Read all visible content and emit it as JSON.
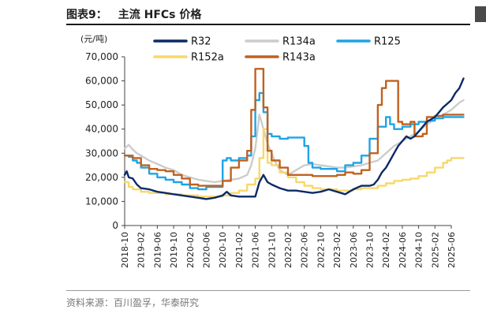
{
  "figure": {
    "label": "图表9：",
    "title": "主流 HFCs 价格",
    "source": "资料来源：百川盈孚，华泰研究"
  },
  "chart_data": {
    "type": "line",
    "title": "",
    "xlabel": "",
    "ylabel": "(元/吨)",
    "ylim": [
      0,
      70000
    ],
    "yticks": [
      0,
      10000,
      20000,
      30000,
      40000,
      50000,
      60000,
      70000
    ],
    "ytick_labels": [
      "0",
      "10,000",
      "20,000",
      "30,000",
      "40,000",
      "50,000",
      "60,000",
      "70,000"
    ],
    "xticks": [
      "2018-10",
      "2019-02",
      "2019-06",
      "2019-10",
      "2020-02",
      "2020-06",
      "2020-10",
      "2021-02",
      "2021-06",
      "2021-10",
      "2022-02",
      "2022-06",
      "2022-10",
      "2023-02",
      "2023-06",
      "2023-10",
      "2024-02",
      "2024-06",
      "2024-10",
      "2025-02",
      "2025-06"
    ],
    "x_unit": "month",
    "x_start": "2018-10",
    "legend_position": "top",
    "grid": false,
    "series": [
      {
        "name": "R32",
        "color": "#0c2a66",
        "step": false,
        "points": [
          [
            0,
            21000
          ],
          [
            0.5,
            22500
          ],
          [
            1,
            20000
          ],
          [
            2,
            19500
          ],
          [
            3,
            17000
          ],
          [
            4,
            15500
          ],
          [
            6,
            15000
          ],
          [
            8,
            14000
          ],
          [
            10,
            13500
          ],
          [
            12,
            13000
          ],
          [
            14,
            12500
          ],
          [
            16,
            12000
          ],
          [
            18,
            11500
          ],
          [
            20,
            11000
          ],
          [
            22,
            11500
          ],
          [
            24,
            12500
          ],
          [
            25,
            14000
          ],
          [
            26,
            12500
          ],
          [
            28,
            12000
          ],
          [
            30,
            12000
          ],
          [
            32,
            12000
          ],
          [
            33,
            18000
          ],
          [
            34,
            21000
          ],
          [
            35,
            18000
          ],
          [
            36,
            17000
          ],
          [
            38,
            15500
          ],
          [
            40,
            14500
          ],
          [
            42,
            14500
          ],
          [
            44,
            14000
          ],
          [
            46,
            13500
          ],
          [
            48,
            14000
          ],
          [
            50,
            15000
          ],
          [
            52,
            14000
          ],
          [
            54,
            13000
          ],
          [
            56,
            15000
          ],
          [
            58,
            16500
          ],
          [
            60,
            16500
          ],
          [
            61,
            17000
          ],
          [
            62,
            19000
          ],
          [
            63,
            22000
          ],
          [
            64,
            24000
          ],
          [
            65,
            27000
          ],
          [
            66,
            30000
          ],
          [
            67,
            33000
          ],
          [
            68,
            35000
          ],
          [
            69,
            37000
          ],
          [
            70,
            36000
          ],
          [
            71,
            37000
          ],
          [
            72,
            39000
          ],
          [
            73,
            41000
          ],
          [
            74,
            43000
          ],
          [
            75,
            44000
          ],
          [
            76,
            45000
          ],
          [
            77,
            47000
          ],
          [
            78,
            49000
          ],
          [
            79,
            50500
          ],
          [
            80,
            52000
          ],
          [
            81,
            55000
          ],
          [
            82,
            57000
          ],
          [
            83,
            61000
          ]
        ]
      },
      {
        "name": "R134a",
        "color": "#cccccc",
        "step": false,
        "points": [
          [
            0,
            32000
          ],
          [
            1,
            33500
          ],
          [
            2,
            31500
          ],
          [
            3,
            30000
          ],
          [
            4,
            29000
          ],
          [
            6,
            27000
          ],
          [
            8,
            25500
          ],
          [
            10,
            24000
          ],
          [
            12,
            23000
          ],
          [
            14,
            21000
          ],
          [
            16,
            20000
          ],
          [
            18,
            19000
          ],
          [
            20,
            18500
          ],
          [
            22,
            18000
          ],
          [
            24,
            18500
          ],
          [
            26,
            19000
          ],
          [
            28,
            19500
          ],
          [
            30,
            21000
          ],
          [
            31,
            25000
          ],
          [
            32,
            32000
          ],
          [
            33,
            46000
          ],
          [
            34,
            40000
          ],
          [
            35,
            34000
          ],
          [
            36,
            30000
          ],
          [
            37,
            26000
          ],
          [
            38,
            23000
          ],
          [
            40,
            21000
          ],
          [
            42,
            23000
          ],
          [
            44,
            25000
          ],
          [
            46,
            25500
          ],
          [
            48,
            25000
          ],
          [
            50,
            24500
          ],
          [
            52,
            24000
          ],
          [
            54,
            24000
          ],
          [
            56,
            24500
          ],
          [
            58,
            25000
          ],
          [
            60,
            26000
          ],
          [
            62,
            27000
          ],
          [
            64,
            30000
          ],
          [
            66,
            33000
          ],
          [
            68,
            35000
          ],
          [
            70,
            37000
          ],
          [
            72,
            39000
          ],
          [
            74,
            42000
          ],
          [
            76,
            44000
          ],
          [
            78,
            46000
          ],
          [
            80,
            48000
          ],
          [
            82,
            51000
          ],
          [
            83,
            52000
          ]
        ]
      },
      {
        "name": "R125",
        "color": "#1ea4e6",
        "step": true,
        "points": [
          [
            0,
            29000
          ],
          [
            1,
            28500
          ],
          [
            2,
            27000
          ],
          [
            3,
            26000
          ],
          [
            4,
            24000
          ],
          [
            6,
            21500
          ],
          [
            8,
            20000
          ],
          [
            10,
            19000
          ],
          [
            12,
            18000
          ],
          [
            14,
            17000
          ],
          [
            16,
            15500
          ],
          [
            18,
            15000
          ],
          [
            20,
            16000
          ],
          [
            22,
            16000
          ],
          [
            24,
            27000
          ],
          [
            25,
            28000
          ],
          [
            26,
            27000
          ],
          [
            28,
            28000
          ],
          [
            30,
            29000
          ],
          [
            31,
            37000
          ],
          [
            32,
            52000
          ],
          [
            33,
            55000
          ],
          [
            34,
            47000
          ],
          [
            35,
            38000
          ],
          [
            36,
            37000
          ],
          [
            38,
            36000
          ],
          [
            40,
            36500
          ],
          [
            42,
            36500
          ],
          [
            44,
            33000
          ],
          [
            45,
            26000
          ],
          [
            46,
            24000
          ],
          [
            48,
            23500
          ],
          [
            50,
            23500
          ],
          [
            52,
            22500
          ],
          [
            54,
            25000
          ],
          [
            56,
            26000
          ],
          [
            58,
            29000
          ],
          [
            60,
            36000
          ],
          [
            62,
            41000
          ],
          [
            64,
            45000
          ],
          [
            65,
            42000
          ],
          [
            66,
            40000
          ],
          [
            68,
            41000
          ],
          [
            70,
            42000
          ],
          [
            72,
            43000
          ],
          [
            74,
            43500
          ],
          [
            76,
            44500
          ],
          [
            78,
            45000
          ],
          [
            80,
            45000
          ],
          [
            83,
            45000
          ]
        ]
      },
      {
        "name": "R152a",
        "color": "#f7d86a",
        "step": true,
        "points": [
          [
            0,
            18000
          ],
          [
            1,
            16000
          ],
          [
            2,
            15000
          ],
          [
            4,
            14000
          ],
          [
            6,
            13500
          ],
          [
            10,
            13000
          ],
          [
            14,
            12500
          ],
          [
            18,
            12000
          ],
          [
            22,
            12000
          ],
          [
            24,
            12500
          ],
          [
            26,
            13500
          ],
          [
            28,
            14500
          ],
          [
            30,
            17000
          ],
          [
            32,
            19500
          ],
          [
            33,
            28000
          ],
          [
            34,
            40000
          ],
          [
            35,
            26000
          ],
          [
            36,
            25000
          ],
          [
            38,
            22000
          ],
          [
            40,
            20000
          ],
          [
            42,
            18000
          ],
          [
            44,
            16500
          ],
          [
            46,
            15500
          ],
          [
            48,
            15000
          ],
          [
            50,
            15000
          ],
          [
            52,
            14500
          ],
          [
            54,
            14500
          ],
          [
            56,
            15000
          ],
          [
            58,
            15500
          ],
          [
            60,
            15500
          ],
          [
            62,
            16500
          ],
          [
            64,
            17500
          ],
          [
            66,
            18500
          ],
          [
            68,
            19000
          ],
          [
            70,
            19500
          ],
          [
            72,
            20500
          ],
          [
            74,
            22000
          ],
          [
            76,
            24000
          ],
          [
            78,
            26000
          ],
          [
            79,
            27000
          ],
          [
            80,
            28000
          ],
          [
            83,
            28000
          ]
        ]
      },
      {
        "name": "R143a",
        "color": "#c0611f",
        "step": true,
        "points": [
          [
            0,
            29000
          ],
          [
            2,
            28000
          ],
          [
            4,
            25000
          ],
          [
            6,
            23500
          ],
          [
            8,
            23000
          ],
          [
            10,
            22500
          ],
          [
            12,
            21000
          ],
          [
            14,
            19500
          ],
          [
            16,
            17000
          ],
          [
            18,
            16500
          ],
          [
            20,
            16500
          ],
          [
            22,
            16500
          ],
          [
            24,
            18500
          ],
          [
            26,
            24000
          ],
          [
            28,
            27000
          ],
          [
            30,
            31000
          ],
          [
            31,
            48000
          ],
          [
            32,
            65000
          ],
          [
            33,
            65000
          ],
          [
            34,
            49000
          ],
          [
            35,
            31000
          ],
          [
            36,
            27000
          ],
          [
            38,
            24000
          ],
          [
            40,
            21000
          ],
          [
            42,
            21000
          ],
          [
            44,
            21000
          ],
          [
            46,
            20500
          ],
          [
            48,
            20500
          ],
          [
            50,
            20500
          ],
          [
            52,
            21000
          ],
          [
            54,
            22000
          ],
          [
            56,
            21500
          ],
          [
            58,
            23000
          ],
          [
            60,
            30000
          ],
          [
            62,
            50000
          ],
          [
            63,
            57000
          ],
          [
            64,
            60000
          ],
          [
            66,
            60000
          ],
          [
            67,
            43000
          ],
          [
            68,
            42000
          ],
          [
            70,
            43000
          ],
          [
            71,
            37000
          ],
          [
            73,
            38000
          ],
          [
            74,
            45000
          ],
          [
            76,
            45500
          ],
          [
            78,
            46000
          ],
          [
            83,
            46000
          ]
        ]
      }
    ]
  }
}
